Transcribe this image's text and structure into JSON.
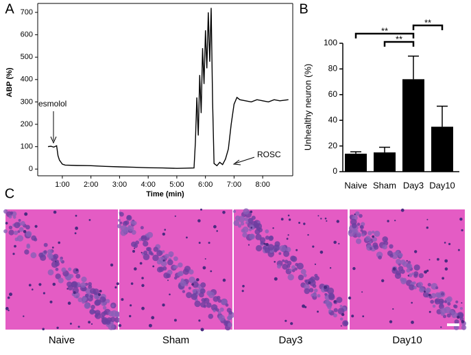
{
  "panels": {
    "a": "A",
    "b": "B",
    "c": "C"
  },
  "chart_data": [
    {
      "type": "line",
      "xlabel": "Time (min)",
      "ylabel": "ABP (%)",
      "x": [
        0.5,
        0.6,
        0.7,
        0.8,
        0.85,
        0.9,
        1.0,
        1.1,
        1.5,
        2.0,
        2.5,
        3.0,
        3.5,
        4.0,
        4.5,
        5.0,
        5.3,
        5.6,
        5.65,
        5.7,
        5.75,
        5.8,
        5.85,
        5.9,
        5.95,
        6.0,
        6.05,
        6.1,
        6.15,
        6.2,
        6.25,
        6.3,
        6.4,
        6.5,
        6.6,
        6.7,
        6.8,
        6.9,
        7.0,
        7.1,
        7.2,
        7.4,
        7.6,
        7.8,
        8.0,
        8.2,
        8.4,
        8.6,
        8.9
      ],
      "series": [
        {
          "color": "#000000",
          "values": [
            100,
            102,
            98,
            104,
            60,
            40,
            22,
            18,
            16,
            15,
            12,
            10,
            8,
            6,
            5,
            3,
            4,
            5,
            120,
            320,
            150,
            420,
            250,
            540,
            380,
            620,
            450,
            700,
            480,
            720,
            300,
            25,
            15,
            30,
            20,
            45,
            90,
            200,
            290,
            320,
            310,
            305,
            300,
            310,
            305,
            300,
            310,
            305,
            310
          ]
        }
      ],
      "xlim": [
        0.14,
        9.05
      ],
      "xticks": [
        {
          "value": 1,
          "label": "1:00"
        },
        {
          "value": 2,
          "label": "2:00"
        },
        {
          "value": 3,
          "label": "3:00"
        },
        {
          "value": 4,
          "label": "4:00"
        },
        {
          "value": 5,
          "label": "5:00"
        },
        {
          "value": 6,
          "label": "6:00"
        },
        {
          "value": 7,
          "label": "7:00"
        },
        {
          "value": 8,
          "label": "8:00"
        }
      ],
      "ylim": [
        -30,
        740
      ],
      "yticks": [
        0,
        100,
        200,
        300,
        400,
        500,
        600,
        700
      ],
      "annotations": [
        "esmolol",
        "ROSC"
      ]
    },
    {
      "type": "bar",
      "ylabel": "Unhealthy neuron (%)",
      "categories": [
        "Naive",
        "Sham",
        "Day3",
        "Day10"
      ],
      "values": [
        14,
        15,
        72,
        35
      ],
      "errors": [
        1.5,
        4,
        18,
        16
      ],
      "color": "#000000",
      "ylim": [
        0,
        100
      ],
      "yticks": [
        0,
        20,
        40,
        60,
        80,
        100
      ],
      "annotations": [
        "**",
        "**",
        "**"
      ]
    }
  ],
  "images": {
    "captions": [
      "Naive",
      "Sham",
      "Day3",
      "Day10"
    ]
  }
}
